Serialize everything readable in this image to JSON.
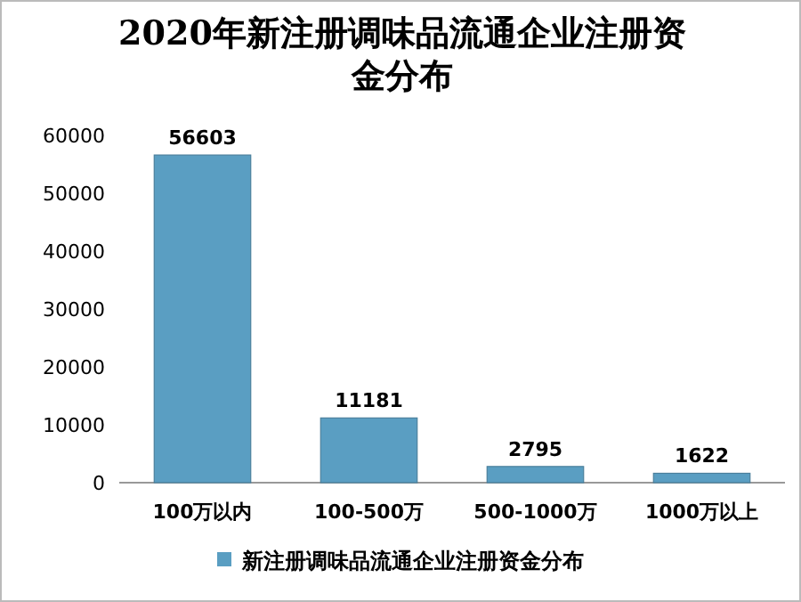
{
  "chart_data": {
    "type": "bar",
    "title": "2020年新注册调味品流通企业注册资金分布",
    "categories": [
      "100万以内",
      "100-500万",
      "500-1000万",
      "1000万以上"
    ],
    "series": [
      {
        "name": "新注册调味品流通企业注册资金分布",
        "color": "#5a9ec2",
        "values": [
          56603,
          11181,
          2795,
          1622
        ]
      }
    ],
    "ylim": [
      0,
      60000
    ],
    "yticks": [
      0,
      10000,
      20000,
      30000,
      40000,
      50000,
      60000
    ],
    "data_labels": true,
    "grid": false,
    "legend": "bottom"
  }
}
